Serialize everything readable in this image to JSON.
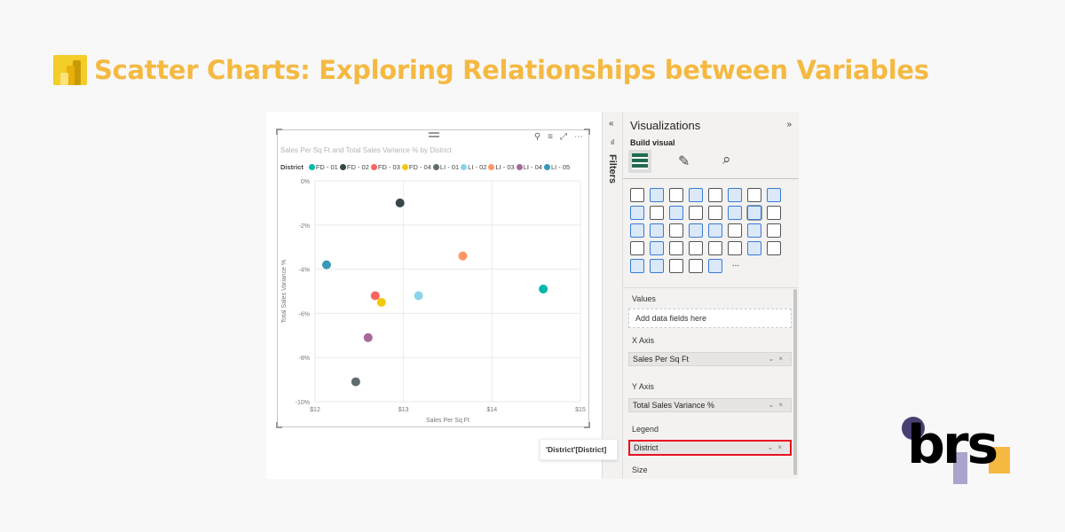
{
  "page_title": "Scatter Charts: Exploring Relationships between Variables",
  "colors": {
    "title": "#f5b942",
    "highlight": "#e81123"
  },
  "visual": {
    "title": "Sales Per Sq Ft and Total Sales Variance % by District",
    "legend_title": "District",
    "toolbar_icons": [
      "pin-icon",
      "filter-icon",
      "focus-mode-icon",
      "more-options-icon"
    ]
  },
  "chart_data": {
    "type": "scatter",
    "title": "Sales Per Sq Ft and Total Sales Variance % by District",
    "xlabel": "Sales Per Sq Ft",
    "ylabel": "Total Sales Variance %",
    "xlim": [
      12,
      15
    ],
    "ylim": [
      -10,
      0
    ],
    "x_ticks": [
      "$12",
      "$13",
      "$14",
      "$15"
    ],
    "y_ticks": [
      "0%",
      "-2%",
      "-4%",
      "-6%",
      "-8%",
      "-10%"
    ],
    "grid": true,
    "legend_position": "top-left",
    "series": [
      {
        "name": "FD - 01",
        "color": "#01B8AA",
        "x": 14.58,
        "y": -4.9
      },
      {
        "name": "FD - 02",
        "color": "#374649",
        "x": 12.96,
        "y": -1.0
      },
      {
        "name": "FD - 03",
        "color": "#FD625E",
        "x": 12.68,
        "y": -5.2
      },
      {
        "name": "FD - 04",
        "color": "#F2C80F",
        "x": 12.75,
        "y": -5.5
      },
      {
        "name": "LI - 01",
        "color": "#5F6B6D",
        "x": 12.46,
        "y": -9.1
      },
      {
        "name": "LI - 02",
        "color": "#8AD4EB",
        "x": 13.17,
        "y": -5.2
      },
      {
        "name": "LI - 03",
        "color": "#FE9666",
        "x": 13.67,
        "y": -3.4
      },
      {
        "name": "LI - 04",
        "color": "#A66999",
        "x": 12.6,
        "y": -7.1
      },
      {
        "name": "LI - 05",
        "color": "#3599B8",
        "x": 12.13,
        "y": -3.8
      }
    ]
  },
  "filters": {
    "label": "Filters"
  },
  "pane": {
    "title": "Visualizations",
    "build_visual": "Build visual",
    "values_label": "Values",
    "values_placeholder": "Add data fields here",
    "x_axis_label": "X Axis",
    "x_axis_field": "Sales Per Sq Ft",
    "y_axis_label": "Y Axis",
    "y_axis_field": "Total Sales Variance %",
    "legend_label": "Legend",
    "legend_field": "District",
    "size_label": "Size",
    "more": "..."
  },
  "tooltip": "'District'[District]",
  "logo": {
    "text": "brs"
  }
}
